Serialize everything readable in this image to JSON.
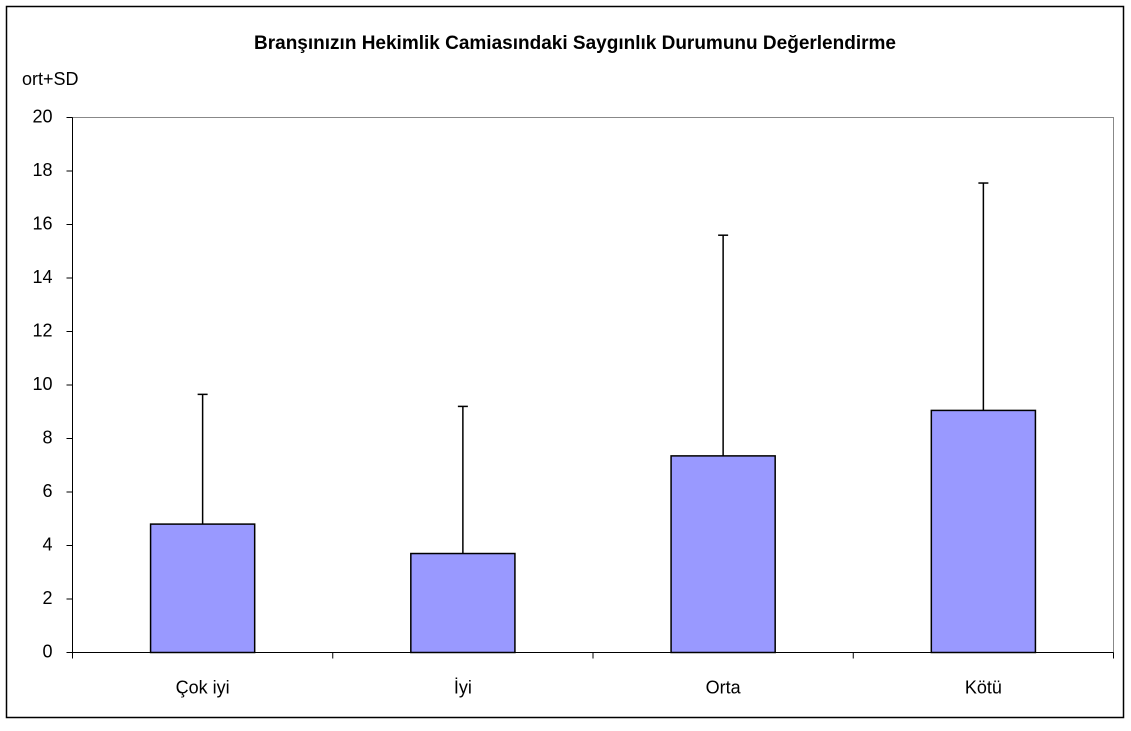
{
  "chart_data": {
    "type": "bar",
    "title": "Branşınızın Hekimlik Camiasındaki Saygınlık Durumunu Değerlendirme",
    "y_label": "ort+SD",
    "categories": [
      "Çok iyi",
      "İyi",
      "Orta",
      "Kötü"
    ],
    "values": [
      4.8,
      3.7,
      7.35,
      9.05
    ],
    "errors": [
      4.85,
      5.5,
      8.25,
      8.5
    ],
    "color": "#9999ff",
    "ylim": [
      0,
      20
    ],
    "yticks": [
      0,
      2,
      4,
      6,
      8,
      10,
      12,
      14,
      16,
      18,
      20
    ],
    "grid": false
  }
}
